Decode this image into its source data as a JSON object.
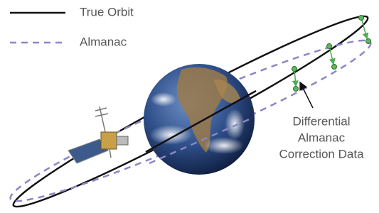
{
  "legend": {
    "items": [
      {
        "label": "True Orbit"
      },
      {
        "label": "Almanac"
      }
    ]
  },
  "annotation": {
    "lines": [
      "Differential",
      "Almanac",
      "Correction Data"
    ]
  }
}
